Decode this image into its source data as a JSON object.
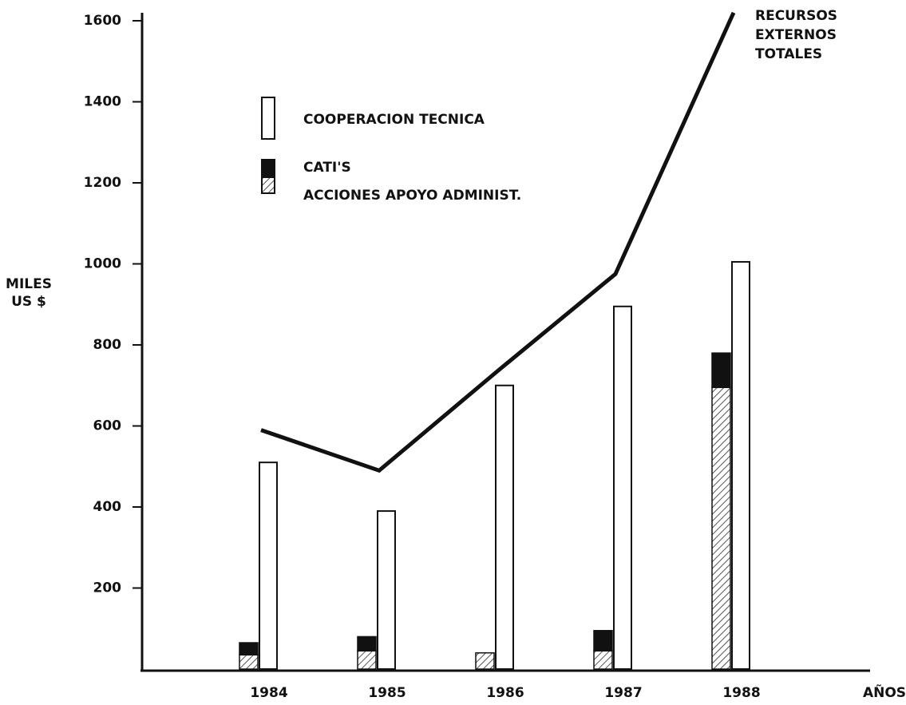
{
  "chart_data": {
    "type": "bar",
    "ylabel": "MILES US $",
    "xlabel": "AÑOS",
    "categories": [
      "1984",
      "1985",
      "1986",
      "1987",
      "1988"
    ],
    "ylim": [
      0,
      1600
    ],
    "yticks": [
      200,
      400,
      600,
      800,
      1000,
      1200,
      1400,
      1600
    ],
    "series": [
      {
        "name": "COOPERACION TECNICA",
        "color": "#ffffff",
        "values": [
          510,
          390,
          700,
          895,
          1005
        ]
      },
      {
        "name": "ACCIONES APOYO ADMINIST.",
        "color": "#777777",
        "pattern": "hatch",
        "stack": "a",
        "values": [
          35,
          45,
          40,
          45,
          695
        ]
      },
      {
        "name": "CATI'S",
        "color": "#111111",
        "stack": "a",
        "values": [
          30,
          35,
          0,
          50,
          85
        ]
      },
      {
        "name": "RECURSOS EXTERNOS TOTALES",
        "type": "line",
        "color": "#111111",
        "values": [
          590,
          490,
          735,
          975,
          1620
        ]
      }
    ]
  }
}
